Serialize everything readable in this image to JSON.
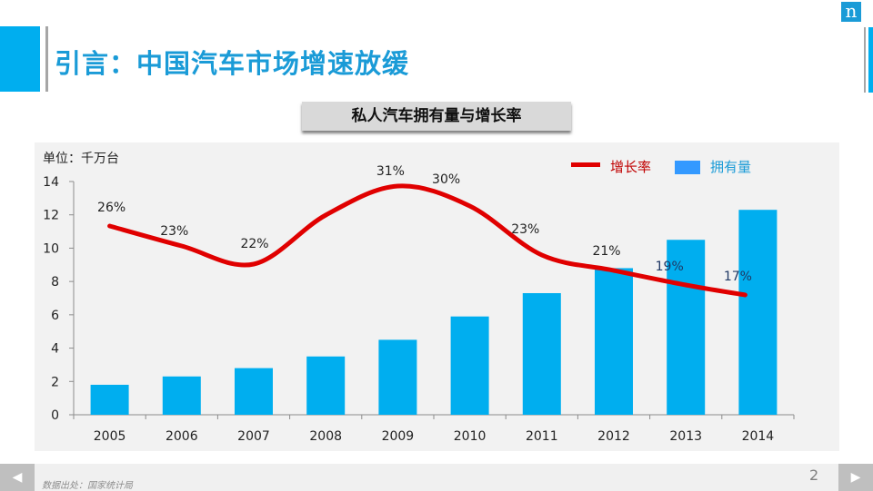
{
  "header": {
    "title": "引言：中国汽车市场增速放缓",
    "logo_text": "n"
  },
  "subtitle": "私人汽车拥有量与增长率",
  "footer": {
    "source": "数据出处：国家统计局",
    "page_number": "2",
    "prev_icon": "◀",
    "next_icon": "▶"
  },
  "colors": {
    "accent_blue": "#00aeef",
    "title_blue": "#1a9bd7",
    "line_red": "#e00000",
    "legend_bar_blue": "#3399ff"
  },
  "chart_data": {
    "type": "bar+line",
    "title": "私人汽车拥有量与增长率",
    "unit_label": "单位：千万台",
    "categories": [
      "2005",
      "2006",
      "2007",
      "2008",
      "2009",
      "2010",
      "2011",
      "2012",
      "2013",
      "2014"
    ],
    "y_ticks": [
      "0",
      "2",
      "4",
      "6",
      "8",
      "10",
      "12",
      "14"
    ],
    "ylim": [
      0,
      14
    ],
    "series": [
      {
        "name": "拥有量",
        "type": "bar",
        "axis": "primary",
        "values": [
          1.8,
          2.3,
          2.8,
          3.5,
          4.5,
          5.9,
          7.3,
          8.8,
          10.5,
          12.3
        ]
      },
      {
        "name": "增长率",
        "type": "line",
        "axis": "secondary",
        "smooth": true,
        "values": [
          26,
          23,
          22,
          31,
          30,
          23,
          21,
          19,
          17,
          17
        ],
        "labels": [
          "26%",
          "23%",
          "22%",
          "31%",
          "30%",
          "23%",
          "21%",
          "19%",
          "17%"
        ]
      }
    ],
    "line_points_note": "growth-rate line covers 2005–2014 with 9 labeled values",
    "legend": {
      "position": "top-right",
      "entries": [
        "增长率",
        "拥有量"
      ]
    },
    "grid": false
  }
}
